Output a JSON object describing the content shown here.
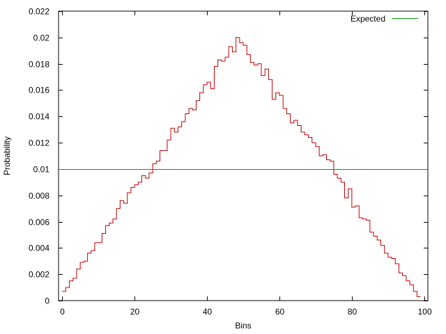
{
  "chart_data": {
    "type": "line",
    "title": "",
    "xlabel": "Bins",
    "ylabel": "Probability",
    "xlim": [
      -1,
      101
    ],
    "ylim": [
      0,
      0.022
    ],
    "x_ticks": [
      0,
      20,
      40,
      60,
      80,
      100
    ],
    "y_ticks": [
      0,
      0.002,
      0.004,
      0.006,
      0.008,
      0.01,
      0.012,
      0.014,
      0.016,
      0.018,
      0.02,
      0.022
    ],
    "x_tick_labels": [
      "0",
      "20",
      "40",
      "60",
      "80",
      "100"
    ],
    "y_tick_labels": [
      "0",
      "0.002",
      "0.004",
      "0.006",
      "0.008",
      "0.01",
      "0.012",
      "0.014",
      "0.016",
      "0.018",
      "0.02",
      "0.022"
    ],
    "grid": false,
    "legend_position": "top-right",
    "series": [
      {
        "name": "",
        "style": "steps",
        "color": "#c00000",
        "x": [
          0,
          1,
          2,
          3,
          4,
          5,
          6,
          7,
          8,
          9,
          10,
          11,
          12,
          13,
          14,
          15,
          16,
          17,
          18,
          19,
          20,
          21,
          22,
          23,
          24,
          25,
          26,
          27,
          28,
          29,
          30,
          31,
          32,
          33,
          34,
          35,
          36,
          37,
          38,
          39,
          40,
          41,
          42,
          43,
          44,
          45,
          46,
          47,
          48,
          49,
          50,
          51,
          52,
          53,
          54,
          55,
          56,
          57,
          58,
          59,
          60,
          61,
          62,
          63,
          64,
          65,
          66,
          67,
          68,
          69,
          70,
          71,
          72,
          73,
          74,
          75,
          76,
          77,
          78,
          79,
          80,
          81,
          82,
          83,
          84,
          85,
          86,
          87,
          88,
          89,
          90,
          91,
          92,
          93,
          94,
          95,
          96,
          97,
          98
        ],
        "values": [
          0.0007,
          0.001,
          0.0015,
          0.0017,
          0.0024,
          0.0029,
          0.003,
          0.0036,
          0.0038,
          0.0044,
          0.0044,
          0.0051,
          0.0057,
          0.0059,
          0.0062,
          0.007,
          0.0076,
          0.0074,
          0.0082,
          0.0086,
          0.0088,
          0.009,
          0.0095,
          0.0093,
          0.0097,
          0.0104,
          0.0106,
          0.0114,
          0.0114,
          0.0122,
          0.0131,
          0.0128,
          0.0132,
          0.0136,
          0.0142,
          0.0146,
          0.0145,
          0.0152,
          0.0158,
          0.0164,
          0.0166,
          0.0161,
          0.0178,
          0.0183,
          0.0182,
          0.0185,
          0.0193,
          0.0189,
          0.02,
          0.0196,
          0.0194,
          0.0187,
          0.0181,
          0.0179,
          0.018,
          0.0171,
          0.0176,
          0.0168,
          0.0153,
          0.0158,
          0.0156,
          0.0146,
          0.0142,
          0.0135,
          0.0137,
          0.0133,
          0.0128,
          0.0126,
          0.0124,
          0.012,
          0.0117,
          0.011,
          0.0111,
          0.0107,
          0.0106,
          0.0096,
          0.0093,
          0.009,
          0.0078,
          0.0085,
          0.0071,
          0.0072,
          0.0063,
          0.0062,
          0.0061,
          0.0052,
          0.0049,
          0.0046,
          0.0042,
          0.0036,
          0.0033,
          0.0032,
          0.0028,
          0.0021,
          0.0019,
          0.0015,
          0.0012,
          0.0007,
          0.0003
        ]
      },
      {
        "name": "Expected",
        "style": "line",
        "color": "#00a000",
        "x": [
          -1,
          101
        ],
        "values": [
          0.01,
          0.01
        ]
      }
    ]
  }
}
